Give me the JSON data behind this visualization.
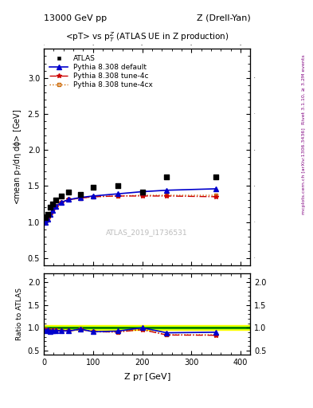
{
  "title_top_left": "13000 GeV pp",
  "title_top_right": "Z (Drell-Yan)",
  "plot_title": "<pT> vs p$_T^Z$ (ATLAS UE in Z production)",
  "watermark": "ATLAS_2019_I1736531",
  "right_label_top": "Rivet 3.1.10, ≥ 3.2M events",
  "right_label_bottom": "mcplots.cern.ch [arXiv:1306.3436]",
  "xlabel": "Z p$_T$ [GeV]",
  "ylabel": "<mean p$_T$/dη dϕ> [GeV]",
  "ylabel_ratio": "Ratio to ATLAS",
  "xlim": [
    0,
    420
  ],
  "ylim_main": [
    0.4,
    3.4
  ],
  "ylim_ratio": [
    0.4,
    2.2
  ],
  "yticks_main": [
    0.5,
    1.0,
    1.5,
    2.0,
    2.5,
    3.0
  ],
  "xticks": [
    0,
    100,
    200,
    300,
    400
  ],
  "yticks_ratio": [
    0.5,
    1.0,
    1.5,
    2.0
  ],
  "atlas_x": [
    2.5,
    7.5,
    12.5,
    17.5,
    25,
    35,
    50,
    75,
    100,
    150,
    200,
    250,
    350
  ],
  "atlas_y": [
    1.06,
    1.1,
    1.21,
    1.25,
    1.3,
    1.36,
    1.41,
    1.38,
    1.48,
    1.5,
    1.42,
    1.62,
    1.62
  ],
  "py_default_x": [
    2.5,
    7.5,
    12.5,
    17.5,
    25,
    35,
    50,
    75,
    100,
    150,
    200,
    250,
    350
  ],
  "py_default_y": [
    1.0,
    1.04,
    1.1,
    1.16,
    1.22,
    1.27,
    1.31,
    1.34,
    1.36,
    1.39,
    1.42,
    1.44,
    1.46
  ],
  "py_4c_x": [
    2.5,
    7.5,
    12.5,
    17.5,
    25,
    35,
    50,
    75,
    100,
    150,
    200,
    250,
    350
  ],
  "py_4c_y": [
    1.01,
    1.05,
    1.11,
    1.17,
    1.22,
    1.27,
    1.31,
    1.33,
    1.35,
    1.36,
    1.36,
    1.36,
    1.35
  ],
  "py_4cx_x": [
    2.5,
    7.5,
    12.5,
    17.5,
    25,
    35,
    50,
    75,
    100,
    150,
    200,
    250,
    350
  ],
  "py_4cx_y": [
    1.02,
    1.05,
    1.12,
    1.18,
    1.23,
    1.27,
    1.31,
    1.33,
    1.35,
    1.36,
    1.37,
    1.37,
    1.37
  ],
  "ratio_default_y": [
    0.943,
    0.945,
    0.909,
    0.928,
    0.938,
    0.934,
    0.929,
    0.971,
    0.912,
    0.927,
    1.0,
    0.889,
    0.901
  ],
  "ratio_4c_y": [
    0.953,
    0.955,
    0.917,
    0.936,
    0.938,
    0.934,
    0.929,
    0.964,
    0.912,
    0.907,
    0.958,
    0.84,
    0.835
  ],
  "ratio_4cx_y": [
    0.962,
    0.955,
    0.926,
    0.944,
    0.946,
    0.934,
    0.929,
    0.964,
    0.912,
    0.907,
    0.965,
    0.846,
    0.846
  ],
  "band_yellow_lo": 0.95,
  "band_yellow_hi": 1.05,
  "band_green_lo": 0.98,
  "band_green_hi": 1.02,
  "color_default": "#0000cc",
  "color_4c": "#cc0000",
  "color_4cx": "#cc6600",
  "color_atlas": "#000000",
  "color_watermark": "#bbbbbb"
}
